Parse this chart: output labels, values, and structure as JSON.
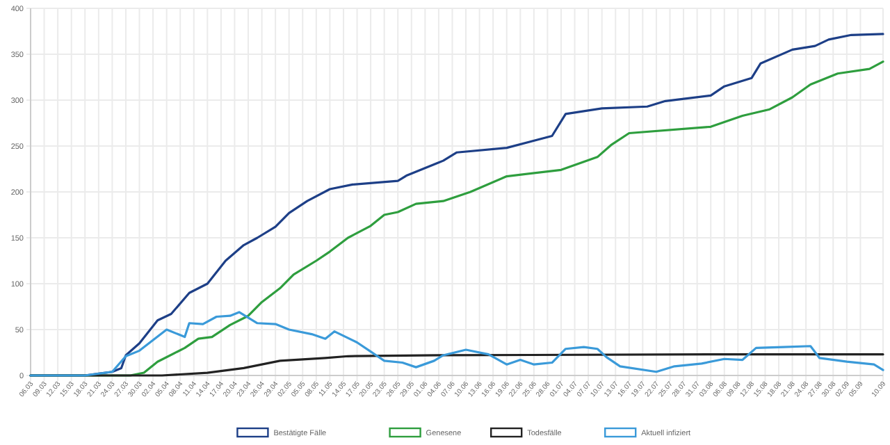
{
  "chart_data": {
    "type": "line",
    "xlim": [
      "--03-06",
      "--09-10"
    ],
    "xticks": [
      {
        "value": "--03-06",
        "label": "06.03"
      },
      {
        "value": "--03-09",
        "label": "09.03"
      },
      {
        "value": "--03-12",
        "label": "12.03"
      },
      {
        "value": "--03-15",
        "label": "15.03"
      },
      {
        "value": "--03-18",
        "label": "18.03"
      },
      {
        "value": "--03-21",
        "label": "21.03"
      },
      {
        "value": "--03-24",
        "label": "24.03"
      },
      {
        "value": "--03-27",
        "label": "27.03"
      },
      {
        "value": "--03-30",
        "label": "30.03"
      },
      {
        "value": "--04-02",
        "label": "02.04"
      },
      {
        "value": "--04-05",
        "label": "05.04"
      },
      {
        "value": "--04-08",
        "label": "08.04"
      },
      {
        "value": "--04-11",
        "label": "11.04"
      },
      {
        "value": "--04-14",
        "label": "14.04"
      },
      {
        "value": "--04-17",
        "label": "17.04"
      },
      {
        "value": "--04-20",
        "label": "20.04"
      },
      {
        "value": "--04-23",
        "label": "23.04"
      },
      {
        "value": "--04-26",
        "label": "26.04"
      },
      {
        "value": "--04-29",
        "label": "29.04"
      },
      {
        "value": "--05-02",
        "label": "02.05"
      },
      {
        "value": "--05-05",
        "label": "05.05"
      },
      {
        "value": "--05-08",
        "label": "08.05"
      },
      {
        "value": "--05-11",
        "label": "11.05"
      },
      {
        "value": "--05-14",
        "label": "14.05"
      },
      {
        "value": "--05-17",
        "label": "17.05"
      },
      {
        "value": "--05-20",
        "label": "20.05"
      },
      {
        "value": "--05-23",
        "label": "23.05"
      },
      {
        "value": "--05-26",
        "label": "26.05"
      },
      {
        "value": "--05-29",
        "label": "29.05"
      },
      {
        "value": "--06-01",
        "label": "01.06"
      },
      {
        "value": "--06-04",
        "label": "04.06"
      },
      {
        "value": "--06-07",
        "label": "07.06"
      },
      {
        "value": "--06-10",
        "label": "10.06"
      },
      {
        "value": "--06-13",
        "label": "13.06"
      },
      {
        "value": "--06-16",
        "label": "16.06"
      },
      {
        "value": "--06-19",
        "label": "19.06"
      },
      {
        "value": "--06-22",
        "label": "22.06"
      },
      {
        "value": "--06-25",
        "label": "25.06"
      },
      {
        "value": "--06-28",
        "label": "28.06"
      },
      {
        "value": "--07-01",
        "label": "01.07"
      },
      {
        "value": "--07-04",
        "label": "04.07"
      },
      {
        "value": "--07-07",
        "label": "07.07"
      },
      {
        "value": "--07-10",
        "label": "10.07"
      },
      {
        "value": "--07-13",
        "label": "13.07"
      },
      {
        "value": "--07-16",
        "label": "16.07"
      },
      {
        "value": "--07-19",
        "label": "19.07"
      },
      {
        "value": "--07-22",
        "label": "22.07"
      },
      {
        "value": "--07-25",
        "label": "25.07"
      },
      {
        "value": "--07-28",
        "label": "28.07"
      },
      {
        "value": "--07-31",
        "label": "31.07"
      },
      {
        "value": "--08-03",
        "label": "03.08"
      },
      {
        "value": "--08-06",
        "label": "06.08"
      },
      {
        "value": "--08-09",
        "label": "09.08"
      },
      {
        "value": "--08-12",
        "label": "12.08"
      },
      {
        "value": "--08-15",
        "label": "15.08"
      },
      {
        "value": "--08-18",
        "label": "18.08"
      },
      {
        "value": "--08-21",
        "label": "21.08"
      },
      {
        "value": "--08-24",
        "label": "24.08"
      },
      {
        "value": "--08-27",
        "label": "27.08"
      },
      {
        "value": "--08-30",
        "label": "30.08"
      },
      {
        "value": "--09-02",
        "label": "02.09"
      },
      {
        "value": "--09-05",
        "label": "05.09"
      },
      {
        "value": "--09-10",
        "label": "10.09"
      }
    ],
    "ylim": [
      0,
      400
    ],
    "yticks": [
      0,
      50,
      100,
      150,
      200,
      250,
      300,
      350,
      400
    ],
    "grid": true,
    "legend": "bottom",
    "marker": "none",
    "series": [
      {
        "name": "Bestätigte Fälle",
        "color": "#1d3f87",
        "x": [
          "--03-06",
          "--03-18",
          "--03-21",
          "--03-24",
          "--03-26",
          "--03-27",
          "--03-30",
          "--04-03",
          "--04-06",
          "--04-10",
          "--04-14",
          "--04-18",
          "--04-22",
          "--04-25",
          "--04-29",
          "--05-02",
          "--05-06",
          "--05-11",
          "--05-16",
          "--05-26",
          "--05-28",
          "--06-04",
          "--06-05",
          "--06-08",
          "--06-19",
          "--06-29",
          "--07-02",
          "--07-10",
          "--07-20",
          "--07-24",
          "--08-03",
          "--08-06",
          "--08-12",
          "--08-14",
          "--08-21",
          "--08-26",
          "--08-29",
          "--09-03",
          "--09-10"
        ],
        "values": [
          0,
          0,
          2,
          4,
          8,
          22,
          35,
          60,
          67,
          90,
          100,
          125,
          142,
          150,
          162,
          177,
          190,
          203,
          208,
          212,
          218,
          232,
          234,
          243,
          248,
          261,
          285,
          291,
          293,
          299,
          305,
          315,
          324,
          340,
          355,
          359,
          366,
          371,
          372
        ]
      },
      {
        "name": "Genesene",
        "color": "#2e9e3e",
        "x": [
          "--03-06",
          "--03-28",
          "--03-31",
          "--04-03",
          "--04-09",
          "--04-12",
          "--04-15",
          "--04-19",
          "--04-23",
          "--04-26",
          "--04-30",
          "--05-03",
          "--05-08",
          "--05-11",
          "--05-15",
          "--05-20",
          "--05-23",
          "--05-26",
          "--05-30",
          "--06-05",
          "--06-11",
          "--06-19",
          "--07-01",
          "--07-09",
          "--07-12",
          "--07-16",
          "--08-03",
          "--08-10",
          "--08-16",
          "--08-21",
          "--08-25",
          "--08-31",
          "--09-07",
          "--09-10"
        ],
        "values": [
          0,
          0,
          3,
          15,
          30,
          40,
          42,
          55,
          65,
          80,
          95,
          110,
          125,
          135,
          150,
          163,
          175,
          178,
          187,
          190,
          200,
          217,
          224,
          238,
          251,
          264,
          271,
          283,
          290,
          303,
          317,
          329,
          334,
          342
        ]
      },
      {
        "name": "Todesfälle",
        "color": "#222222",
        "x": [
          "--03-06",
          "--04-04",
          "--04-14",
          "--04-22",
          "--04-30",
          "--05-10",
          "--05-15",
          "--06-04",
          "--08-03",
          "--09-10"
        ],
        "values": [
          0,
          0,
          3,
          8,
          16,
          19,
          21,
          22,
          23,
          23
        ]
      },
      {
        "name": "Aktuell infiziert",
        "color": "#3a9ad9",
        "x": [
          "--03-06",
          "--03-18",
          "--03-24",
          "--03-27",
          "--03-30",
          "--04-05",
          "--04-09",
          "--04-10",
          "--04-13",
          "--04-16",
          "--04-19",
          "--04-21",
          "--04-25",
          "--04-29",
          "--05-02",
          "--05-07",
          "--05-10",
          "--05-12",
          "--05-17",
          "--05-20",
          "--05-23",
          "--05-27",
          "--05-30",
          "--06-03",
          "--06-05",
          "--06-10",
          "--06-15",
          "--06-19",
          "--06-22",
          "--06-25",
          "--06-29",
          "--07-02",
          "--07-06",
          "--07-09",
          "--07-11",
          "--07-14",
          "--07-22",
          "--07-26",
          "--08-01",
          "--08-06",
          "--08-10",
          "--08-13",
          "--08-19",
          "--08-25",
          "--08-27",
          "--09-02",
          "--09-08",
          "--09-10"
        ],
        "values": [
          0,
          0,
          4,
          21,
          27,
          50,
          42,
          57,
          56,
          64,
          65,
          69,
          57,
          56,
          50,
          45,
          40,
          48,
          36,
          26,
          16,
          14,
          9,
          16,
          22,
          28,
          23,
          12,
          17,
          12,
          14,
          29,
          31,
          29,
          20,
          10,
          4,
          10,
          13,
          18,
          17,
          30,
          31,
          32,
          19,
          15,
          12,
          6
        ]
      }
    ]
  }
}
